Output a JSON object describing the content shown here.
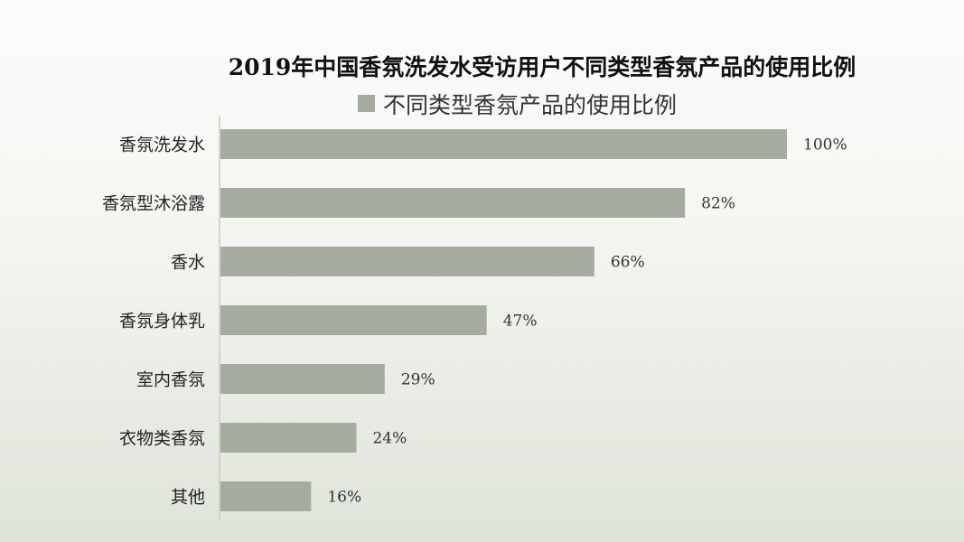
{
  "chart_data": {
    "type": "bar",
    "orientation": "horizontal",
    "title": "2019年中国香氛洗发水受访用户不同类型香氛产品的使用比例",
    "legend": {
      "position": "top",
      "entries": [
        "不同类型香氛产品的使用比例"
      ]
    },
    "categories": [
      "香氛洗发水",
      "香氛型沐浴露",
      "香水",
      "香氛身体乳",
      "室内香氛",
      "衣物类香氛",
      "其他"
    ],
    "series": [
      {
        "name": "不同类型香氛产品的使用比例",
        "values": [
          100,
          82,
          66,
          47,
          29,
          24,
          16
        ],
        "color": "#a6ab9f"
      }
    ],
    "data_labels": [
      "100%",
      "82%",
      "66%",
      "47%",
      "29%",
      "24%",
      "16%"
    ],
    "value_unit": "%",
    "xlim": [
      0,
      100
    ],
    "grid": false
  }
}
